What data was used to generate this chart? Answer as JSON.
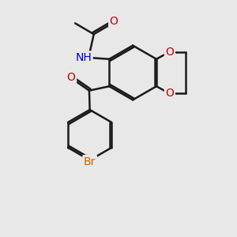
{
  "bg_color": "#e8e8e8",
  "bond_color": "#1a1a1a",
  "bond_width": 1.8,
  "atom_colors": {
    "O": "#cc0000",
    "N": "#0000cc",
    "Br": "#cc6600",
    "C": "#1a1a1a",
    "H": "#555555"
  },
  "font_size": 10,
  "font_size_br": 10
}
